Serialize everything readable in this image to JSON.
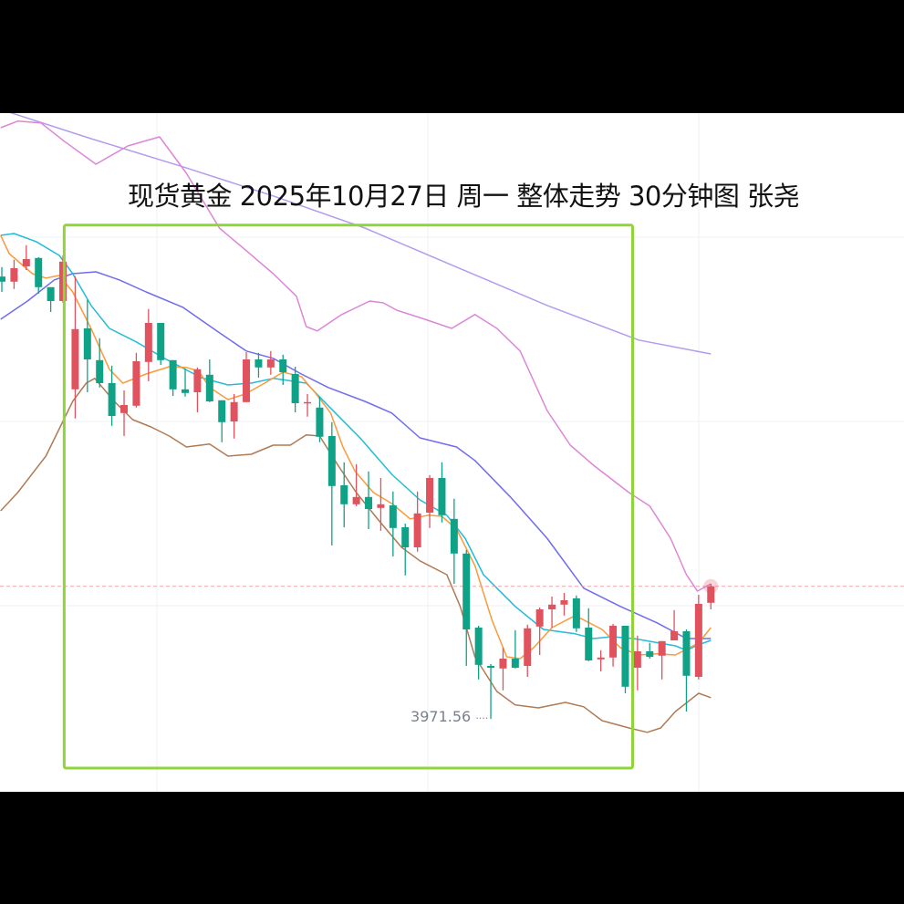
{
  "title": "现货黄金 2025年10月27日 周一  整体走势 30分钟图 张尧",
  "chart_data": {
    "type": "candlestick",
    "title": "现货黄金 2025年10月27日 周一  整体走势 30分钟图 张尧",
    "xlabel": "",
    "ylabel": "",
    "ylim": [
      3951.6,
      4137.6
    ],
    "xlim": [
      -0.15,
      73.8
    ],
    "grid": true,
    "colors": {
      "up": "#e0525e",
      "down": "#0fa287",
      "current_price_line": "#f2a3ab",
      "box": "#8fd43a"
    },
    "candles": [
      [
        4092.8,
        4095.4,
        4088.6,
        4091.4
      ],
      [
        4091.4,
        4097.4,
        4089.4,
        4095.1
      ],
      [
        4095.6,
        4101.4,
        4094.6,
        4097.6
      ],
      [
        4097.9,
        4098.1,
        4088.1,
        4089.9
      ],
      [
        4089.9,
        4089.9,
        4083.1,
        4086.1
      ],
      [
        4086.1,
        4098.6,
        4085.6,
        4096.9
      ],
      [
        4061.9,
        4092.9,
        4053.9,
        4078.4
      ],
      [
        4078.6,
        4086.4,
        4061.1,
        4070.1
      ],
      [
        4069.9,
        4075.9,
        4062.4,
        4063.6
      ],
      [
        4063.6,
        4068.4,
        4051.9,
        4054.6
      ],
      [
        4055.4,
        4061.6,
        4049.1,
        4057.6
      ],
      [
        4057.4,
        4071.9,
        4056.9,
        4069.6
      ],
      [
        4069.4,
        4083.9,
        4064.1,
        4080.1
      ],
      [
        4080.1,
        4080.1,
        4068.6,
        4069.9
      ],
      [
        4069.9,
        4069.9,
        4060.1,
        4061.9
      ],
      [
        4061.9,
        4067.6,
        4059.9,
        4060.9
      ],
      [
        4061.1,
        4067.9,
        4055.6,
        4067.4
      ],
      [
        4065.9,
        4070.1,
        4058.4,
        4058.6
      ],
      [
        4058.9,
        4058.9,
        4047.4,
        4052.9
      ],
      [
        4053.1,
        4060.6,
        4048.4,
        4058.4
      ],
      [
        4058.4,
        4072.1,
        4058.4,
        4070.1
      ],
      [
        4070.1,
        4071.9,
        4065.1,
        4067.9
      ],
      [
        4067.9,
        4072.4,
        4065.9,
        4070.1
      ],
      [
        4070.1,
        4071.4,
        4063.1,
        4066.6
      ],
      [
        4066.1,
        4068.1,
        4055.6,
        4058.1
      ],
      [
        4058.1,
        4060.6,
        4054.4,
        4058.4
      ],
      [
        4056.9,
        4059.9,
        4047.4,
        4048.9
      ],
      [
        4049.1,
        4052.9,
        4019.1,
        4035.4
      ],
      [
        4035.6,
        4041.9,
        4024.1,
        4030.4
      ],
      [
        4030.4,
        4041.4,
        4029.9,
        4032.4
      ],
      [
        4032.4,
        4039.4,
        4023.6,
        4029.1
      ],
      [
        4029.4,
        4037.6,
        4023.1,
        4030.4
      ],
      [
        4030.1,
        4033.9,
        4016.1,
        4023.9
      ],
      [
        4024.1,
        4025.1,
        4010.9,
        4018.6
      ],
      [
        4018.6,
        4033.9,
        4017.4,
        4027.9
      ],
      [
        4028.1,
        4038.4,
        4023.9,
        4037.6
      ],
      [
        4037.6,
        4041.9,
        4025.4,
        4027.4
      ],
      [
        4026.4,
        4031.9,
        4008.6,
        4016.9
      ],
      [
        4016.9,
        4017.9,
        3986.1,
        3996.1
      ],
      [
        3996.6,
        3997.1,
        3982.4,
        3986.4
      ],
      [
        3986.1,
        3986.6,
        3971.56,
        3985.6
      ],
      [
        3985.4,
        3991.1,
        3979.4,
        3988.1
      ],
      [
        3988.1,
        3995.9,
        3985.4,
        3985.6
      ],
      [
        3986.1,
        3997.4,
        3983.1,
        3996.4
      ],
      [
        3996.9,
        4002.1,
        3989.1,
        4001.6
      ],
      [
        4001.6,
        4005.1,
        3996.6,
        4002.9
      ],
      [
        4002.9,
        4006.1,
        3999.9,
        4004.1
      ],
      [
        4004.6,
        4005.4,
        3995.4,
        3996.4
      ],
      [
        3996.6,
        4001.9,
        3987.4,
        3987.6
      ],
      [
        3987.9,
        3990.4,
        3984.6,
        3988.4
      ],
      [
        3988.4,
        3997.6,
        3985.9,
        3997.1
      ],
      [
        3997.1,
        3997.1,
        3978.6,
        3980.4
      ],
      [
        3985.6,
        3994.4,
        3979.4,
        3990.1
      ],
      [
        3990.1,
        3992.4,
        3988.1,
        3988.6
      ],
      [
        3988.9,
        3992.9,
        3982.4,
        3992.9
      ],
      [
        3993.1,
        4001.4,
        3993.1,
        3995.6
      ],
      [
        3995.6,
        3996.1,
        3973.6,
        3983.4
      ],
      [
        3983.1,
        4005.6,
        3982.4,
        4003.1
      ],
      [
        4003.4,
        4008.6,
        4001.6,
        4007.9
      ]
    ],
    "candle_fields": [
      "open",
      "high",
      "low",
      "close"
    ],
    "current_price": 4007.9,
    "low_annotation": {
      "index": 40,
      "value": "3971.56",
      "suffix": "····"
    },
    "highlight_box": {
      "from_index": 5.1,
      "to_index": 51.6,
      "high": 4106.9,
      "low": 3958.1
    },
    "lines": [
      {
        "color": "#b39bef",
        "points": [
          [
            -0.1,
            4138.6
          ],
          [
            7.3,
            4130.6
          ],
          [
            14.8,
            4122.9
          ],
          [
            22.2,
            4114.9
          ],
          [
            29.7,
            4106.1
          ],
          [
            37.2,
            4095.4
          ],
          [
            44.6,
            4084.9
          ],
          [
            52.1,
            4075.4
          ],
          [
            58,
            4071.6
          ]
        ]
      },
      {
        "color": "#dd86d6",
        "points": [
          [
            -0.1,
            4133.6
          ],
          [
            1.3,
            4135.4
          ],
          [
            3.2,
            4134.9
          ],
          [
            5.1,
            4129.9
          ],
          [
            7.7,
            4123.6
          ],
          [
            10.3,
            4128.6
          ],
          [
            12.9,
            4131.1
          ],
          [
            15.1,
            4121.1
          ],
          [
            17.8,
            4106.1
          ],
          [
            20.0,
            4099.9
          ],
          [
            22.2,
            4093.6
          ],
          [
            24.1,
            4087.4
          ],
          [
            24.9,
            4079.1
          ],
          [
            25.8,
            4077.9
          ],
          [
            27.8,
            4082.4
          ],
          [
            30.1,
            4086.1
          ],
          [
            31.2,
            4085.6
          ],
          [
            32.3,
            4083.6
          ],
          [
            34.6,
            4081.1
          ],
          [
            36.8,
            4078.6
          ],
          [
            38.7,
            4082.4
          ],
          [
            40.5,
            4078.6
          ],
          [
            42.4,
            4072.4
          ],
          [
            44.6,
            4056.1
          ],
          [
            46.5,
            4046.6
          ],
          [
            48.4,
            4041.1
          ],
          [
            51.3,
            4033.6
          ],
          [
            53.0,
            4029.9
          ],
          [
            54.7,
            4021.1
          ],
          [
            56.0,
            4011.1
          ],
          [
            56.9,
            4006.6
          ],
          [
            58.0,
            4008.6
          ]
        ]
      },
      {
        "color": "#6f6cf0",
        "points": [
          [
            -0.1,
            4081.1
          ],
          [
            2.1,
            4086.1
          ],
          [
            4.3,
            4091.9
          ],
          [
            5.8,
            4093.6
          ],
          [
            7.7,
            4094.1
          ],
          [
            9.6,
            4091.9
          ],
          [
            11.8,
            4088.6
          ],
          [
            14.8,
            4084.4
          ],
          [
            17.8,
            4077.4
          ],
          [
            20.0,
            4072.4
          ],
          [
            22.2,
            4070.4
          ],
          [
            24.5,
            4066.1
          ],
          [
            26.7,
            4062.4
          ],
          [
            29.7,
            4058.6
          ],
          [
            31.9,
            4055.4
          ],
          [
            34.2,
            4048.6
          ],
          [
            37.2,
            4046.1
          ],
          [
            38.7,
            4042.4
          ],
          [
            41.6,
            4032.4
          ],
          [
            44.6,
            4021.1
          ],
          [
            47.6,
            4007.4
          ],
          [
            50.6,
            4002.4
          ],
          [
            53.6,
            3997.9
          ],
          [
            56.0,
            3993.6
          ],
          [
            58.0,
            3993.6
          ]
        ]
      },
      {
        "color": "#22bcd8",
        "points": [
          [
            -0.1,
            4104.1
          ],
          [
            1.0,
            4104.6
          ],
          [
            2.8,
            4102.4
          ],
          [
            4.7,
            4098.6
          ],
          [
            5.8,
            4093.6
          ],
          [
            7.3,
            4084.9
          ],
          [
            8.8,
            4078.6
          ],
          [
            11.0,
            4074.9
          ],
          [
            13.3,
            4070.4
          ],
          [
            16.3,
            4065.1
          ],
          [
            18.5,
            4063.1
          ],
          [
            20.4,
            4063.6
          ],
          [
            22.2,
            4064.9
          ],
          [
            24.9,
            4063.6
          ],
          [
            26.7,
            4057.4
          ],
          [
            29.3,
            4048.6
          ],
          [
            31.9,
            4038.6
          ],
          [
            34.2,
            4031.6
          ],
          [
            36.4,
            4027.4
          ],
          [
            37.9,
            4021.1
          ],
          [
            39.4,
            4011.1
          ],
          [
            42.0,
            4002.4
          ],
          [
            44.3,
            3996.1
          ],
          [
            46.9,
            3994.9
          ],
          [
            48.4,
            3993.6
          ],
          [
            49.9,
            3994.1
          ],
          [
            51.7,
            3993.6
          ],
          [
            55.1,
            3991.6
          ],
          [
            56.0,
            3990.4
          ],
          [
            57.0,
            3991.9
          ],
          [
            58.0,
            3993.1
          ]
        ]
      },
      {
        "color": "#fb9a3c",
        "points": [
          [
            -0.1,
            4104.1
          ],
          [
            0.6,
            4099.1
          ],
          [
            2.5,
            4093.6
          ],
          [
            3.6,
            4092.4
          ],
          [
            4.7,
            4093.1
          ],
          [
            5.8,
            4088.6
          ],
          [
            7.3,
            4078.6
          ],
          [
            8.8,
            4067.4
          ],
          [
            9.9,
            4063.6
          ],
          [
            11.8,
            4066.1
          ],
          [
            13.7,
            4068.1
          ],
          [
            15.1,
            4067.9
          ],
          [
            16.1,
            4066.9
          ],
          [
            17.0,
            4062.4
          ],
          [
            18.5,
            4059.1
          ],
          [
            19.9,
            4060.6
          ],
          [
            21.5,
            4063.6
          ],
          [
            23.0,
            4066.6
          ],
          [
            24.5,
            4065.4
          ],
          [
            25.6,
            4061.1
          ],
          [
            26.9,
            4055.4
          ],
          [
            27.9,
            4046.1
          ],
          [
            28.9,
            4039.4
          ],
          [
            30.4,
            4033.6
          ],
          [
            31.9,
            4030.6
          ],
          [
            33.4,
            4026.4
          ],
          [
            34.9,
            4027.4
          ],
          [
            36.0,
            4027.1
          ],
          [
            37.2,
            4023.6
          ],
          [
            38.7,
            4013.6
          ],
          [
            40.1,
            3998.6
          ],
          [
            41.3,
            3988.6
          ],
          [
            42.4,
            3988.1
          ],
          [
            43.5,
            3991.1
          ],
          [
            45.0,
            3996.6
          ],
          [
            46.9,
            3999.9
          ],
          [
            49.1,
            3996.1
          ],
          [
            50.6,
            3991.1
          ],
          [
            52.1,
            3989.1
          ],
          [
            53.6,
            3989.4
          ],
          [
            55.1,
            3989.1
          ],
          [
            57.0,
            3992.4
          ],
          [
            58.0,
            3996.6
          ]
        ]
      },
      {
        "color": "#b07a55",
        "points": [
          [
            -0.1,
            4028.6
          ],
          [
            1.3,
            4033.6
          ],
          [
            3.6,
            4043.6
          ],
          [
            4.7,
            4051.1
          ],
          [
            5.8,
            4058.6
          ],
          [
            6.9,
            4063.6
          ],
          [
            7.6,
            4064.9
          ],
          [
            9.2,
            4058.6
          ],
          [
            10.7,
            4053.6
          ],
          [
            12.2,
            4051.6
          ],
          [
            13.7,
            4049.1
          ],
          [
            15.1,
            4046.1
          ],
          [
            17.0,
            4046.9
          ],
          [
            18.5,
            4043.6
          ],
          [
            20.4,
            4044.1
          ],
          [
            22.2,
            4046.6
          ],
          [
            23.6,
            4046.6
          ],
          [
            24.9,
            4049.4
          ],
          [
            26.0,
            4049.1
          ],
          [
            27.5,
            4041.1
          ],
          [
            29.0,
            4033.6
          ],
          [
            30.8,
            4026.1
          ],
          [
            32.7,
            4018.6
          ],
          [
            34.2,
            4014.9
          ],
          [
            36.4,
            4011.1
          ],
          [
            37.5,
            4002.4
          ],
          [
            38.7,
            3988.6
          ],
          [
            40.5,
            3979.1
          ],
          [
            42.0,
            3975.4
          ],
          [
            43.9,
            3974.6
          ],
          [
            46.1,
            3976.1
          ],
          [
            47.6,
            3974.9
          ],
          [
            49.1,
            3971.1
          ],
          [
            51.3,
            3969.1
          ],
          [
            52.8,
            3967.9
          ],
          [
            53.9,
            3969.1
          ],
          [
            55.1,
            3973.6
          ],
          [
            57.0,
            3978.6
          ],
          [
            58.0,
            3977.4
          ]
        ]
      }
    ]
  }
}
